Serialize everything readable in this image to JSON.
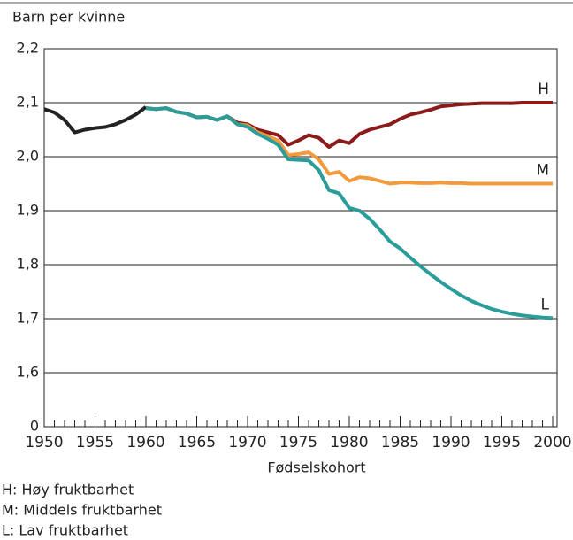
{
  "chart_data": {
    "type": "line",
    "ylabel": "Barn per kvinne",
    "xlabel": "Fødselskohort",
    "x": [
      1950,
      1951,
      1952,
      1953,
      1954,
      1955,
      1956,
      1957,
      1958,
      1959,
      1960,
      1961,
      1962,
      1963,
      1964,
      1965,
      1966,
      1967,
      1968,
      1969,
      1970,
      1971,
      1972,
      1973,
      1974,
      1975,
      1976,
      1977,
      1978,
      1979,
      1980,
      1981,
      1982,
      1983,
      1984,
      1985,
      1986,
      1987,
      1988,
      1989,
      1990,
      1991,
      1992,
      1993,
      1994,
      1995,
      1996,
      1997,
      1998,
      1999,
      2000
    ],
    "series": [
      {
        "color": "#222222",
        "values": [
          2.088,
          2.082,
          2.068,
          2.045,
          2.05,
          2.053,
          2.055,
          2.06,
          2.068,
          2.078,
          2.092,
          null,
          null,
          null,
          null,
          null,
          null,
          null,
          null,
          null,
          null,
          null,
          null,
          null,
          null,
          null,
          null,
          null,
          null,
          null,
          null,
          null,
          null,
          null,
          null,
          null,
          null,
          null,
          null,
          null,
          null,
          null,
          null,
          null,
          null,
          null,
          null,
          null,
          null,
          null,
          null
        ]
      },
      {
        "name": "H",
        "color": "#8b1a1a",
        "values": [
          null,
          null,
          null,
          null,
          null,
          null,
          null,
          null,
          null,
          null,
          2.09,
          2.088,
          2.09,
          2.083,
          2.08,
          2.073,
          2.074,
          2.068,
          2.075,
          2.063,
          2.06,
          2.05,
          2.045,
          2.04,
          2.022,
          2.03,
          2.04,
          2.035,
          2.018,
          2.03,
          2.025,
          2.042,
          2.05,
          2.055,
          2.06,
          2.07,
          2.078,
          2.082,
          2.087,
          2.093,
          2.095,
          2.097,
          2.098,
          2.099,
          2.099,
          2.099,
          2.099,
          2.1,
          2.1,
          2.1,
          2.1
        ]
      },
      {
        "name": "M",
        "color": "#f39a3c",
        "values": [
          null,
          null,
          null,
          null,
          null,
          null,
          null,
          null,
          null,
          null,
          2.09,
          2.088,
          2.09,
          2.083,
          2.08,
          2.073,
          2.074,
          2.068,
          2.075,
          2.06,
          2.058,
          2.045,
          2.038,
          2.03,
          2.003,
          2.005,
          2.008,
          1.995,
          1.968,
          1.972,
          1.955,
          1.962,
          1.96,
          1.955,
          1.95,
          1.952,
          1.952,
          1.951,
          1.951,
          1.952,
          1.951,
          1.951,
          1.95,
          1.95,
          1.95,
          1.95,
          1.95,
          1.95,
          1.95,
          1.95,
          1.95
        ]
      },
      {
        "name": "L",
        "color": "#2a9d9a",
        "values": [
          null,
          null,
          null,
          null,
          null,
          null,
          null,
          null,
          null,
          null,
          2.09,
          2.088,
          2.09,
          2.083,
          2.08,
          2.073,
          2.074,
          2.068,
          2.075,
          2.06,
          2.055,
          2.042,
          2.033,
          2.022,
          1.995,
          1.994,
          1.993,
          1.975,
          1.938,
          1.932,
          1.905,
          1.9,
          1.885,
          1.865,
          1.843,
          1.83,
          1.813,
          1.797,
          1.782,
          1.768,
          1.755,
          1.743,
          1.733,
          1.725,
          1.718,
          1.713,
          1.709,
          1.706,
          1.704,
          1.702,
          1.701
        ]
      }
    ],
    "xlim": [
      1950,
      2000
    ],
    "xticks": [
      1950,
      1955,
      1960,
      1965,
      1970,
      1975,
      1980,
      1985,
      1990,
      1995,
      2000
    ],
    "xminorticks": [
      1951,
      1952,
      1953,
      1954,
      1956,
      1957,
      1958,
      1959,
      1961,
      1962,
      1963,
      1964,
      1966,
      1967,
      1968,
      1969,
      1971,
      1972,
      1973,
      1974,
      1976,
      1977,
      1978,
      1979,
      1981,
      1982,
      1983,
      1984,
      1986,
      1987,
      1988,
      1989,
      1991,
      1992,
      1993,
      1994,
      1996,
      1997,
      1998,
      1999
    ],
    "ylim": [
      0,
      2.2
    ],
    "ybreak": [
      0,
      1.5
    ],
    "yticks": [
      0,
      {
        "value": 1.6,
        "label": "1,6"
      },
      {
        "value": 1.7,
        "label": "1,7"
      },
      {
        "value": 1.8,
        "label": "1,8"
      },
      {
        "value": 1.9,
        "label": "1,9"
      },
      {
        "value": 2.0,
        "label": "2,0"
      },
      {
        "value": 2.1,
        "label": "2,1"
      },
      {
        "value": 2.2,
        "label": "2,2"
      }
    ],
    "grid": true,
    "notes": [
      "H: Høy fruktbarhet",
      "M: Middels fruktbarhet",
      "L: Lav fruktbarhet"
    ]
  }
}
